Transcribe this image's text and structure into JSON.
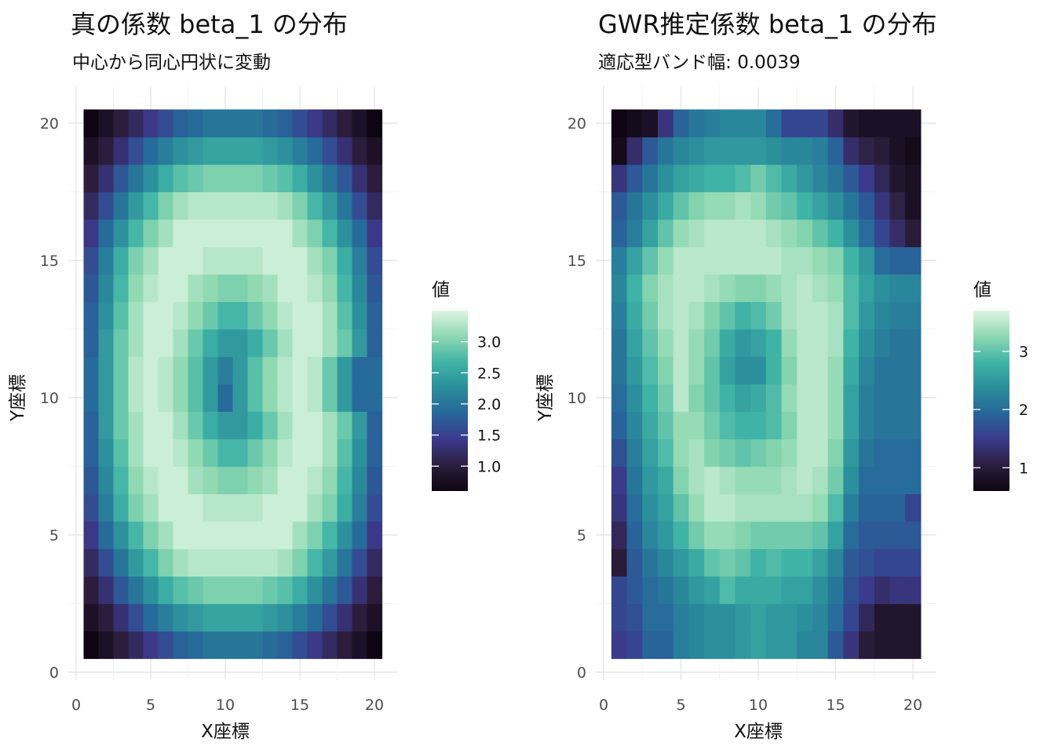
{
  "chart_data": [
    {
      "type": "heatmap",
      "title": "真の係数 beta_1 の分布",
      "subtitle": "中心から同心円状に変動",
      "xlabel": "X座標",
      "ylabel": "Y座標",
      "xlim": [
        0,
        20.5
      ],
      "ylim": [
        0,
        20.5
      ],
      "xticks": [
        0,
        5,
        10,
        15,
        20
      ],
      "yticks": [
        0,
        5,
        10,
        15,
        20
      ],
      "x": [
        1,
        2,
        3,
        4,
        5,
        6,
        7,
        8,
        9,
        10,
        11,
        12,
        13,
        14,
        15,
        16,
        17,
        18,
        19,
        20
      ],
      "y": [
        1,
        2,
        3,
        4,
        5,
        6,
        7,
        8,
        9,
        10,
        11,
        12,
        13,
        14,
        15,
        16,
        17,
        18,
        19,
        20
      ],
      "grid": true,
      "legend": {
        "title": "値",
        "position": "right",
        "range": [
          0.6,
          3.5
        ],
        "breaks": [
          1.0,
          1.5,
          2.0,
          2.5,
          3.0
        ],
        "labels": [
          "1.0",
          "1.5",
          "2.0",
          "2.5",
          "3.0"
        ]
      },
      "colorscale": [
        "#0d0511",
        "#2c1e3d",
        "#3b3a8c",
        "#27669a",
        "#2a8d9b",
        "#40b4a6",
        "#8dd8b0",
        "#def5e5"
      ],
      "values": [
        [
          0.6,
          0.8,
          1.0,
          1.2,
          1.4,
          1.6,
          1.8,
          1.9,
          2.0,
          2.0,
          2.0,
          2.0,
          1.9,
          1.8,
          1.6,
          1.4,
          1.2,
          1.0,
          0.8,
          0.6
        ],
        [
          0.8,
          1.0,
          1.3,
          1.6,
          1.9,
          2.1,
          2.3,
          2.4,
          2.5,
          2.5,
          2.5,
          2.5,
          2.4,
          2.3,
          2.1,
          1.9,
          1.6,
          1.3,
          1.0,
          0.8
        ],
        [
          1.0,
          1.3,
          1.7,
          2.0,
          2.3,
          2.6,
          2.8,
          2.9,
          3.0,
          3.0,
          3.0,
          3.0,
          2.9,
          2.8,
          2.6,
          2.3,
          2.0,
          1.7,
          1.3,
          1.0
        ],
        [
          1.2,
          1.6,
          2.0,
          2.4,
          2.7,
          3.0,
          3.2,
          3.3,
          3.3,
          3.3,
          3.3,
          3.3,
          3.3,
          3.2,
          3.0,
          2.7,
          2.4,
          2.0,
          1.6,
          1.2
        ],
        [
          1.4,
          1.9,
          2.3,
          2.7,
          3.0,
          3.2,
          3.4,
          3.4,
          3.4,
          3.4,
          3.4,
          3.4,
          3.4,
          3.4,
          3.2,
          3.0,
          2.7,
          2.3,
          1.9,
          1.4
        ],
        [
          1.6,
          2.1,
          2.6,
          3.0,
          3.2,
          3.4,
          3.4,
          3.4,
          3.3,
          3.3,
          3.3,
          3.3,
          3.4,
          3.4,
          3.4,
          3.2,
          3.0,
          2.6,
          2.1,
          1.6
        ],
        [
          1.7,
          2.2,
          2.7,
          3.1,
          3.3,
          3.4,
          3.4,
          3.2,
          3.1,
          3.0,
          3.0,
          3.1,
          3.2,
          3.4,
          3.4,
          3.3,
          3.1,
          2.7,
          2.2,
          1.7
        ],
        [
          1.8,
          2.3,
          2.8,
          3.2,
          3.4,
          3.4,
          3.3,
          3.1,
          2.9,
          2.7,
          2.7,
          2.9,
          3.1,
          3.3,
          3.4,
          3.4,
          3.2,
          2.8,
          2.3,
          1.8
        ],
        [
          1.8,
          2.4,
          2.9,
          3.2,
          3.4,
          3.4,
          3.2,
          2.9,
          2.6,
          2.4,
          2.4,
          2.6,
          2.9,
          3.2,
          3.4,
          3.4,
          3.2,
          2.9,
          2.4,
          1.8
        ],
        [
          1.9,
          2.4,
          2.9,
          3.3,
          3.4,
          3.3,
          3.1,
          2.8,
          2.4,
          1.9,
          2.4,
          2.8,
          3.1,
          3.3,
          3.4,
          3.3,
          2.9,
          2.4,
          1.9,
          1.9
        ],
        [
          1.9,
          2.4,
          2.9,
          3.3,
          3.4,
          3.3,
          3.1,
          2.8,
          2.4,
          2.1,
          2.4,
          2.8,
          3.1,
          3.3,
          3.4,
          3.3,
          2.9,
          2.4,
          1.9,
          1.9
        ],
        [
          1.8,
          2.4,
          2.9,
          3.2,
          3.4,
          3.4,
          3.2,
          2.9,
          2.6,
          2.4,
          2.4,
          2.6,
          2.9,
          3.2,
          3.4,
          3.4,
          3.2,
          2.9,
          2.4,
          1.8
        ],
        [
          1.8,
          2.3,
          2.8,
          3.2,
          3.4,
          3.4,
          3.3,
          3.1,
          2.9,
          2.7,
          2.7,
          2.9,
          3.1,
          3.3,
          3.4,
          3.4,
          3.2,
          2.8,
          2.3,
          1.8
        ],
        [
          1.7,
          2.2,
          2.7,
          3.1,
          3.3,
          3.4,
          3.4,
          3.2,
          3.1,
          3.0,
          3.0,
          3.1,
          3.2,
          3.4,
          3.4,
          3.3,
          3.1,
          2.7,
          2.2,
          1.7
        ],
        [
          1.6,
          2.1,
          2.6,
          3.0,
          3.2,
          3.4,
          3.4,
          3.4,
          3.3,
          3.3,
          3.3,
          3.3,
          3.4,
          3.4,
          3.4,
          3.2,
          3.0,
          2.6,
          2.1,
          1.6
        ],
        [
          1.4,
          1.9,
          2.3,
          2.7,
          3.0,
          3.2,
          3.4,
          3.4,
          3.4,
          3.4,
          3.4,
          3.4,
          3.4,
          3.4,
          3.2,
          3.0,
          2.7,
          2.3,
          1.9,
          1.4
        ],
        [
          1.2,
          1.6,
          2.0,
          2.4,
          2.7,
          3.0,
          3.2,
          3.3,
          3.3,
          3.3,
          3.3,
          3.3,
          3.3,
          3.2,
          3.0,
          2.7,
          2.4,
          2.0,
          1.6,
          1.2
        ],
        [
          1.0,
          1.3,
          1.7,
          2.0,
          2.3,
          2.6,
          2.8,
          2.9,
          3.0,
          3.0,
          3.0,
          3.0,
          2.9,
          2.8,
          2.6,
          2.3,
          2.0,
          1.7,
          1.3,
          1.0
        ],
        [
          0.8,
          1.0,
          1.3,
          1.6,
          1.9,
          2.1,
          2.3,
          2.4,
          2.5,
          2.5,
          2.5,
          2.5,
          2.4,
          2.3,
          2.1,
          1.9,
          1.6,
          1.3,
          1.0,
          0.8
        ],
        [
          0.6,
          0.8,
          1.0,
          1.2,
          1.4,
          1.6,
          1.8,
          1.9,
          2.0,
          2.0,
          2.0,
          2.0,
          1.9,
          1.8,
          1.6,
          1.4,
          1.2,
          1.0,
          0.8,
          0.6
        ]
      ]
    },
    {
      "type": "heatmap",
      "title": "GWR推定係数 beta_1 の分布",
      "subtitle": "適応型バンド幅: 0.0039",
      "xlabel": "X座標",
      "ylabel": "Y座標",
      "xlim": [
        0,
        20.5
      ],
      "ylim": [
        0,
        20.5
      ],
      "xticks": [
        0,
        5,
        10,
        15,
        20
      ],
      "yticks": [
        0,
        5,
        10,
        15,
        20
      ],
      "x": [
        1,
        2,
        3,
        4,
        5,
        6,
        7,
        8,
        9,
        10,
        11,
        12,
        13,
        14,
        15,
        16,
        17,
        18,
        19,
        20
      ],
      "y": [
        1,
        2,
        3,
        4,
        5,
        6,
        7,
        8,
        9,
        10,
        11,
        12,
        13,
        14,
        15,
        16,
        17,
        18,
        19,
        20
      ],
      "grid": true,
      "legend": {
        "title": "値",
        "position": "right",
        "range": [
          0.6,
          3.7
        ],
        "breaks": [
          1,
          2,
          3
        ],
        "labels": [
          "1",
          "2",
          "3"
        ]
      },
      "colorscale": [
        "#0d0511",
        "#2c1e3d",
        "#3b3a8c",
        "#27669a",
        "#2a8d9b",
        "#40b4a6",
        "#8dd8b0",
        "#def5e5"
      ],
      "values": [
        [
          1.5,
          1.6,
          1.9,
          1.9,
          2.2,
          2.3,
          2.4,
          2.4,
          2.5,
          2.6,
          2.5,
          2.5,
          2.3,
          2.3,
          1.8,
          1.4,
          1.0,
          0.9,
          0.9,
          0.9
        ],
        [
          1.6,
          1.7,
          2.0,
          2.0,
          2.2,
          2.3,
          2.4,
          2.4,
          2.5,
          2.6,
          2.5,
          2.5,
          2.4,
          2.3,
          2.0,
          1.6,
          1.2,
          0.9,
          0.9,
          0.9
        ],
        [
          1.6,
          1.8,
          2.0,
          2.1,
          2.3,
          2.5,
          2.6,
          2.9,
          2.7,
          2.7,
          2.7,
          2.6,
          2.6,
          2.4,
          2.1,
          1.7,
          1.5,
          1.3,
          1.4,
          1.4
        ],
        [
          1.0,
          1.8,
          2.1,
          2.3,
          2.5,
          2.7,
          3.0,
          3.1,
          3.0,
          2.8,
          2.9,
          2.8,
          2.8,
          2.6,
          2.3,
          1.8,
          1.7,
          1.6,
          1.6,
          1.6
        ],
        [
          1.2,
          1.9,
          2.3,
          2.5,
          2.8,
          3.1,
          3.3,
          3.3,
          3.2,
          3.1,
          3.1,
          3.1,
          3.1,
          3.0,
          2.6,
          2.0,
          1.8,
          1.8,
          1.8,
          1.8
        ],
        [
          1.4,
          2.0,
          2.4,
          2.6,
          3.0,
          3.3,
          3.5,
          3.5,
          3.4,
          3.4,
          3.4,
          3.4,
          3.4,
          3.3,
          2.9,
          2.2,
          1.9,
          1.9,
          1.9,
          1.6
        ],
        [
          1.5,
          2.1,
          2.5,
          2.7,
          3.2,
          3.4,
          3.5,
          3.4,
          3.3,
          3.3,
          3.3,
          3.4,
          3.5,
          3.4,
          3.1,
          2.4,
          2.0,
          2.0,
          2.0,
          2.0
        ],
        [
          1.7,
          2.2,
          2.6,
          2.9,
          3.3,
          3.4,
          3.2,
          3.1,
          3.0,
          3.1,
          3.2,
          3.3,
          3.5,
          3.5,
          3.2,
          2.5,
          2.1,
          2.0,
          2.0,
          2.0
        ],
        [
          1.9,
          2.3,
          2.7,
          3.0,
          3.3,
          3.3,
          3.1,
          2.9,
          2.8,
          2.8,
          2.9,
          3.2,
          3.5,
          3.5,
          3.3,
          2.6,
          2.2,
          2.1,
          2.1,
          2.1
        ],
        [
          2.0,
          2.4,
          2.8,
          3.1,
          3.5,
          3.2,
          3.0,
          2.8,
          2.6,
          2.7,
          2.9,
          3.3,
          3.5,
          3.5,
          3.3,
          2.6,
          2.2,
          2.1,
          2.1,
          2.1
        ],
        [
          2.1,
          2.5,
          2.9,
          3.2,
          3.5,
          3.3,
          3.0,
          2.6,
          2.4,
          2.4,
          2.8,
          3.2,
          3.5,
          3.5,
          3.3,
          2.7,
          2.3,
          2.1,
          2.1,
          2.1
        ],
        [
          2.1,
          2.6,
          3.0,
          3.3,
          3.5,
          3.3,
          3.1,
          2.7,
          2.5,
          2.6,
          2.8,
          3.3,
          3.5,
          3.5,
          3.4,
          2.8,
          2.4,
          2.2,
          2.1,
          2.1
        ],
        [
          2.2,
          2.7,
          3.1,
          3.4,
          3.5,
          3.4,
          3.2,
          3.0,
          2.8,
          2.9,
          3.1,
          3.4,
          3.5,
          3.5,
          3.4,
          2.9,
          2.5,
          2.3,
          2.2,
          2.2
        ],
        [
          2.3,
          2.8,
          3.2,
          3.4,
          3.5,
          3.5,
          3.4,
          3.3,
          3.2,
          3.2,
          3.3,
          3.4,
          3.5,
          3.4,
          3.3,
          2.9,
          2.6,
          2.4,
          2.3,
          2.3
        ],
        [
          2.2,
          2.6,
          3.0,
          3.3,
          3.5,
          3.5,
          3.5,
          3.5,
          3.5,
          3.5,
          3.5,
          3.4,
          3.4,
          3.3,
          3.2,
          2.8,
          2.5,
          2.0,
          1.9,
          1.9
        ],
        [
          1.9,
          2.2,
          2.6,
          3.0,
          3.3,
          3.4,
          3.5,
          3.5,
          3.5,
          3.5,
          3.4,
          3.3,
          3.2,
          3.0,
          2.8,
          2.4,
          2.0,
          1.6,
          1.3,
          1.0
        ],
        [
          1.8,
          2.1,
          2.4,
          2.7,
          3.0,
          3.2,
          3.3,
          3.3,
          3.4,
          3.3,
          3.1,
          3.0,
          2.8,
          2.6,
          2.4,
          2.1,
          1.8,
          1.4,
          1.1,
          0.8
        ],
        [
          1.4,
          1.8,
          2.1,
          2.4,
          2.6,
          2.7,
          2.8,
          2.8,
          2.9,
          3.1,
          2.9,
          2.7,
          2.5,
          2.3,
          2.1,
          1.8,
          1.5,
          1.2,
          0.9,
          0.8
        ],
        [
          0.7,
          1.3,
          1.8,
          2.1,
          2.3,
          2.4,
          2.5,
          2.5,
          2.5,
          2.5,
          2.4,
          2.3,
          2.3,
          2.2,
          1.9,
          1.3,
          1.1,
          1.0,
          0.8,
          0.7
        ],
        [
          0.6,
          0.7,
          0.8,
          1.4,
          1.9,
          2.1,
          2.2,
          2.3,
          2.3,
          2.3,
          2.0,
          1.6,
          1.6,
          1.6,
          1.3,
          0.9,
          0.8,
          0.8,
          0.8,
          0.8
        ]
      ]
    }
  ]
}
